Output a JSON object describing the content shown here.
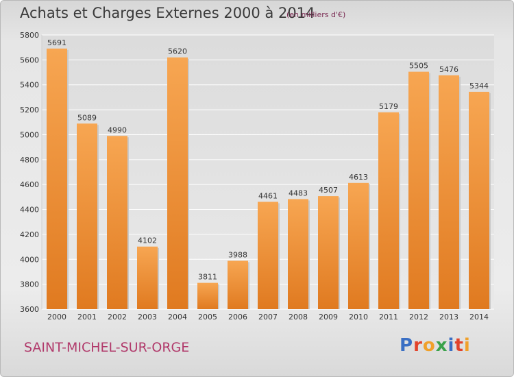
{
  "header": {
    "title": "Achats et Charges Externes 2000 à 2014",
    "subtitle": "(en milliers d'€)"
  },
  "footer": {
    "city": "SAINT-MICHEL-SUR-ORGE",
    "logo_text": "Proxiti"
  },
  "colors": {
    "bar_top": "#f7a652",
    "bar_bottom": "#e07a20",
    "grid": "#ffffff",
    "text": "#333333",
    "city": "#b13a6b"
  },
  "chart_data": {
    "type": "bar",
    "title": "Achats et Charges Externes 2000 à 2014",
    "subtitle": "(en milliers d'€)",
    "categories": [
      "2000",
      "2001",
      "2002",
      "2003",
      "2004",
      "2005",
      "2006",
      "2007",
      "2008",
      "2009",
      "2010",
      "2011",
      "2012",
      "2013",
      "2014"
    ],
    "values": [
      5691,
      5089,
      4990,
      4102,
      5620,
      3811,
      3988,
      4461,
      4483,
      4507,
      4613,
      5179,
      5505,
      5476,
      5344
    ],
    "xlabel": "",
    "ylabel": "",
    "ylim": [
      3600,
      5800
    ],
    "yticks": [
      3600,
      3800,
      4000,
      4200,
      4400,
      4600,
      4800,
      5000,
      5200,
      5400,
      5600,
      5800
    ],
    "grid": true,
    "data_labels": true
  }
}
